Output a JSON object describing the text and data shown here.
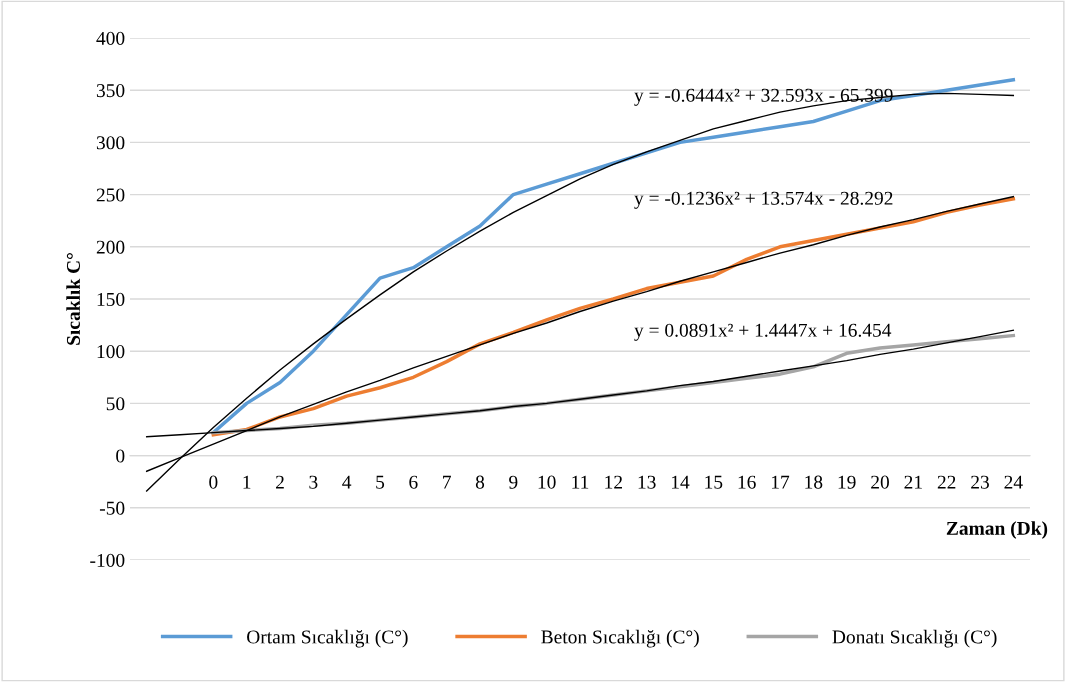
{
  "chart_data": {
    "type": "line",
    "xlabel": "Zaman (Dk)",
    "ylabel": "Sıcaklık C°",
    "categories": [
      null,
      null,
      "0",
      "1",
      "2",
      "3",
      "4",
      "5",
      "6",
      "7",
      "8",
      "9",
      "10",
      "11",
      "12",
      "13",
      "14",
      "15",
      "16",
      "17",
      "18",
      "19",
      "20",
      "21",
      "22",
      "23",
      "24"
    ],
    "series": [
      {
        "name": "Ortam Sıcaklığı (C°)",
        "color": "#5b9bd5",
        "values": [
          null,
          null,
          22,
          50,
          70,
          100,
          135,
          170,
          180,
          200,
          220,
          250,
          260,
          270,
          280,
          290,
          300,
          305,
          310,
          315,
          320,
          330,
          340,
          345,
          350,
          355,
          360
        ]
      },
      {
        "name": "Beton Sıcaklığı (C°)",
        "color": "#ed7d31",
        "values": [
          null,
          null,
          20,
          25,
          37,
          45,
          57,
          65,
          75,
          90,
          107,
          118,
          130,
          141,
          150,
          160,
          166,
          172,
          188,
          200,
          206,
          212,
          218,
          224,
          233,
          240,
          246
        ]
      },
      {
        "name": "Donatı Sıcaklığı (C°)",
        "color": "#a5a5a5",
        "values": [
          null,
          null,
          22,
          24,
          26,
          29,
          31,
          34,
          37,
          40,
          43,
          47,
          50,
          54,
          58,
          62,
          66,
          70,
          74,
          78,
          85,
          98,
          103,
          106,
          109,
          112,
          115
        ]
      },
      {
        "color": "#000000",
        "values": [
          -34,
          -3,
          27,
          55,
          82,
          107,
          131,
          154,
          176,
          196,
          215,
          233,
          249,
          265,
          279,
          291,
          302,
          313,
          321,
          329,
          335,
          340,
          343,
          346,
          347,
          346,
          345
        ]
      },
      {
        "color": "#000000",
        "values": [
          -15,
          -2,
          11,
          24,
          37,
          49,
          61,
          72,
          84,
          95,
          106,
          117,
          127,
          138,
          148,
          157,
          167,
          176,
          185,
          194,
          202,
          211,
          219,
          226,
          234,
          241,
          248
        ]
      },
      {
        "color": "#000000",
        "values": [
          18,
          20,
          22,
          24,
          26,
          28,
          31,
          34,
          37,
          40,
          43,
          47,
          50,
          54,
          58,
          62,
          67,
          71,
          76,
          81,
          86,
          91,
          97,
          102,
          108,
          114,
          120
        ]
      }
    ],
    "annotations": [
      "y = -0.6444x² + 32.593x - 65.399",
      "y = -0.1236x² + 13.574x - 28.292",
      "y = 0.0891x² + 1.4447x + 16.454"
    ],
    "ylim": [
      -100,
      400
    ],
    "yticks": [
      -100,
      -50,
      0,
      50,
      100,
      150,
      200,
      250,
      300,
      350,
      400
    ],
    "grid": "y",
    "legend": "bottom",
    "marker": "none",
    "line_style": "solid"
  }
}
